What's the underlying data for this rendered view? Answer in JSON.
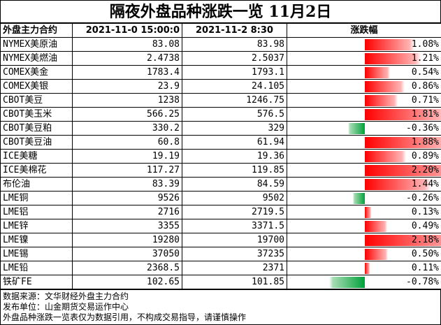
{
  "title": "隔夜外盘品种涨跌一览 11月2日",
  "header": {
    "col1": "外盘主力合约",
    "col2": "2021-11-0 15:00:0",
    "col3": "2021-11-2 8:30",
    "col4": "涨跌幅"
  },
  "rows": [
    {
      "name": "NYMEX美原油",
      "prev": "83.08",
      "cur": "83.98",
      "pct": "1.08%",
      "value": 1.08
    },
    {
      "name": "NYMEX美燃油",
      "prev": "2.4738",
      "cur": "2.5037",
      "pct": "1.21%",
      "value": 1.21
    },
    {
      "name": "COMEX美金",
      "prev": "1783.4",
      "cur": "1793.1",
      "pct": "0.54%",
      "value": 0.54
    },
    {
      "name": "COMEX美银",
      "prev": "23.9",
      "cur": "24.105",
      "pct": "0.86%",
      "value": 0.86
    },
    {
      "name": "CBOT美豆",
      "prev": "1238",
      "cur": "1246.75",
      "pct": "0.71%",
      "value": 0.71
    },
    {
      "name": "CBOT美玉米",
      "prev": "566.25",
      "cur": "576.5",
      "pct": "1.81%",
      "value": 1.81
    },
    {
      "name": "CBOT美豆粕",
      "prev": "330.2",
      "cur": "329",
      "pct": "-0.36%",
      "value": -0.36
    },
    {
      "name": "CBOT美豆油",
      "prev": "60.8",
      "cur": "61.94",
      "pct": "1.88%",
      "value": 1.88
    },
    {
      "name": "ICE美糖",
      "prev": "19.19",
      "cur": "19.36",
      "pct": "0.89%",
      "value": 0.89
    },
    {
      "name": "ICE美棉花",
      "prev": "117.27",
      "cur": "119.85",
      "pct": "2.20%",
      "value": 2.2
    },
    {
      "name": "布伦油",
      "prev": "83.39",
      "cur": "84.59",
      "pct": "1.44%",
      "value": 1.44
    },
    {
      "name": "LME铜",
      "prev": "9526",
      "cur": "9502",
      "pct": "-0.26%",
      "value": -0.26
    },
    {
      "name": "LME铝",
      "prev": "2716",
      "cur": "2719.5",
      "pct": "0.13%",
      "value": 0.13
    },
    {
      "name": "LME锌",
      "prev": "3355",
      "cur": "3371.5",
      "pct": "0.49%",
      "value": 0.49
    },
    {
      "name": "LME镍",
      "prev": "19280",
      "cur": "19700",
      "pct": "2.18%",
      "value": 2.18
    },
    {
      "name": "LME锡",
      "prev": "37050",
      "cur": "37235",
      "pct": "0.50%",
      "value": 0.5
    },
    {
      "name": "LME铅",
      "prev": "2368.5",
      "cur": "2371",
      "pct": "0.11%",
      "value": 0.11
    },
    {
      "name": "铁矿FE",
      "prev": "102.65",
      "cur": "101.85",
      "pct": "-0.78%",
      "value": -0.78
    }
  ],
  "footer": {
    "line1": "数据来源：文华财经外盘主力合约",
    "line2": "发布单位：山金期货交易运作中心",
    "line3": "外盘品种涨跌一览表仅为数据引用，不构成交易指导，请谨慎操作"
  },
  "colors": {
    "positive_bar": "#ff0000",
    "negative_bar": "#00a13a"
  },
  "chart_data": {
    "type": "table",
    "title": "隔夜外盘品种涨跌一览 11月2日",
    "columns": [
      "外盘主力合约",
      "2021-11-0 15:00:0",
      "2021-11-2 8:30",
      "涨跌幅"
    ],
    "categories": [
      "NYMEX美原油",
      "NYMEX美燃油",
      "COMEX美金",
      "COMEX美银",
      "CBOT美豆",
      "CBOT美玉米",
      "CBOT美豆粕",
      "CBOT美豆油",
      "ICE美糖",
      "ICE美棉花",
      "布伦油",
      "LME铜",
      "LME铝",
      "LME锌",
      "LME镍",
      "LME锡",
      "LME铅",
      "铁矿FE"
    ],
    "values": [
      1.08,
      1.21,
      0.54,
      0.86,
      0.71,
      1.81,
      -0.36,
      1.88,
      0.89,
      2.2,
      1.44,
      -0.26,
      0.13,
      0.49,
      2.18,
      0.5,
      0.11,
      -0.78
    ]
  }
}
